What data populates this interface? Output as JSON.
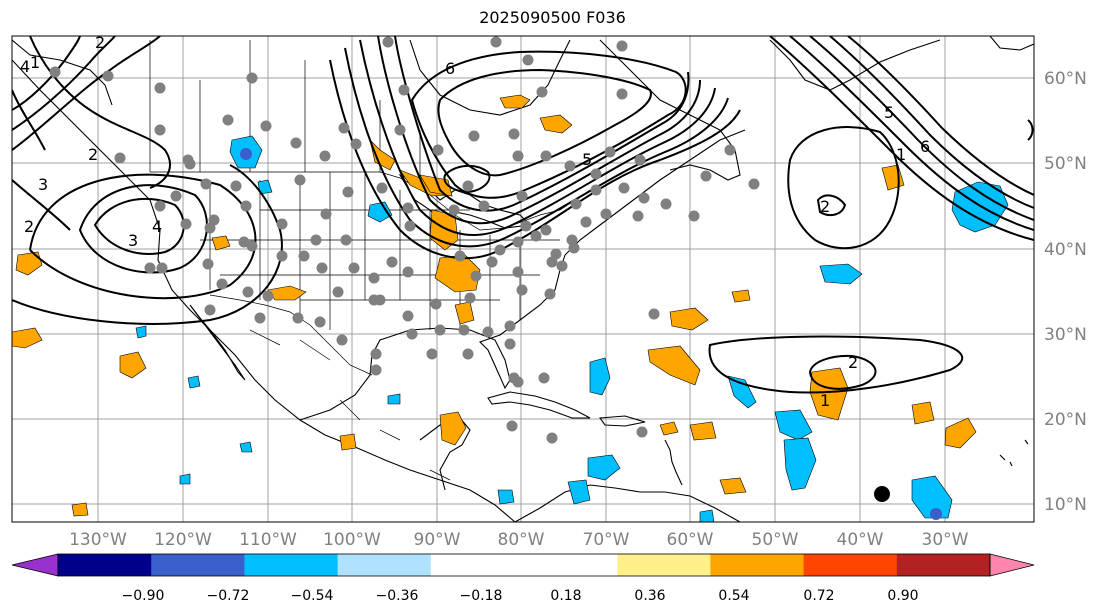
{
  "title": "2025090500 F036",
  "axes": {
    "lon_labels": [
      "130°W",
      "120°W",
      "110°W",
      "100°W",
      "90°W",
      "80°W",
      "70°W",
      "60°W",
      "50°W",
      "40°W",
      "30°W"
    ],
    "lat_labels": [
      "60°N",
      "50°N",
      "40°N",
      "30°N",
      "20°N",
      "10°N"
    ]
  },
  "colorbar": {
    "colors": [
      "#9932cc",
      "#00008b",
      "#3a5fcd",
      "#00bfff",
      "#b0e2ff",
      "#ffffff",
      "#ffffff",
      "#fff08a",
      "#ffa500",
      "#ff4500",
      "#b22222",
      "#ff85ad"
    ],
    "ticks": [
      "−0.90",
      "−0.72",
      "−0.54",
      "−0.36",
      "−0.18",
      "0.18",
      "0.36",
      "0.54",
      "0.72",
      "0.90"
    ]
  },
  "contour_labels": [
    "6",
    "5",
    "4",
    "3",
    "2",
    "1",
    "2",
    "1",
    "2",
    "1",
    "6",
    "5",
    "2",
    "4",
    "3",
    "2"
  ],
  "colors": {
    "positive": "#ffa500",
    "negative": "#00bfff",
    "strong_negative": "#3a5fcd",
    "station": "#808080",
    "grid": "#a0a0a0"
  }
}
